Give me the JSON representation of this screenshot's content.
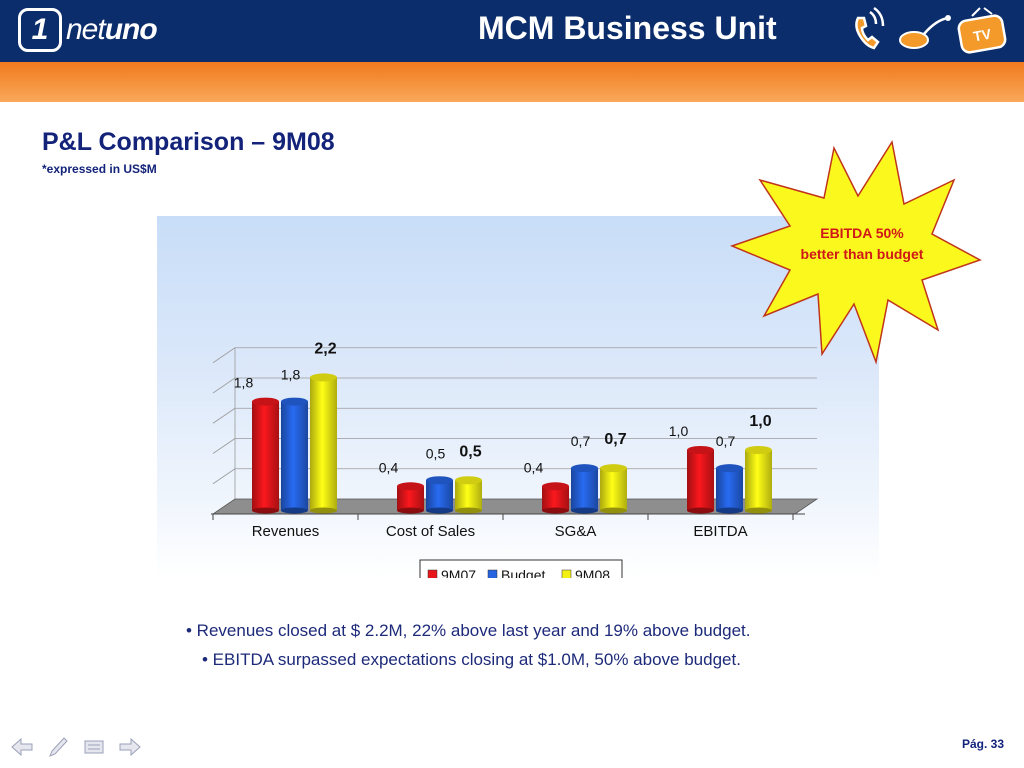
{
  "header": {
    "logo_one": "1",
    "logo_text_a": "net",
    "logo_text_b": "uno",
    "unit_title": "MCM Business Unit",
    "icons": [
      "phone-icon",
      "modem-icon",
      "tv-icon"
    ],
    "tv_label": "TV"
  },
  "slide": {
    "title": "P&L Comparison – 9M08",
    "subtitle": "*expressed in US$M",
    "callout_line1": "EBITDA  50%",
    "callout_line2": "better than budget",
    "bullets": [
      "• Revenues closed at $ 2.2M, 22% above last year and 19% above budget.",
      "• EBITDA surpassed expectations closing at $1.0M, 50% above budget."
    ],
    "page": "Pág. 33"
  },
  "chart_data": {
    "type": "bar",
    "categories": [
      "Revenues",
      "Cost of Sales",
      "SG&A",
      "EBITDA"
    ],
    "series": [
      {
        "name": "9M07",
        "color": "#e8161b",
        "values": [
          1.8,
          0.4,
          0.4,
          1.0
        ],
        "labels": [
          "1,8",
          "0,4",
          "0,4",
          "1,0"
        ]
      },
      {
        "name": "Budget",
        "color": "#2563e0",
        "values": [
          1.8,
          0.5,
          0.7,
          0.7
        ],
        "labels": [
          "1,8",
          "0,5",
          "0,7",
          "0,7"
        ]
      },
      {
        "name": "9M08",
        "color": "#f3f014",
        "values": [
          2.2,
          0.5,
          0.7,
          1.0
        ],
        "labels": [
          "2,2",
          "0,5",
          "0,7",
          "1,0"
        ],
        "bold_labels": true
      }
    ],
    "ylim": [
      0,
      2.5
    ],
    "grid": true,
    "legend": "bottom"
  },
  "nav": [
    "back-arrow-icon",
    "pen-icon",
    "menu-icon",
    "forward-arrow-icon"
  ]
}
